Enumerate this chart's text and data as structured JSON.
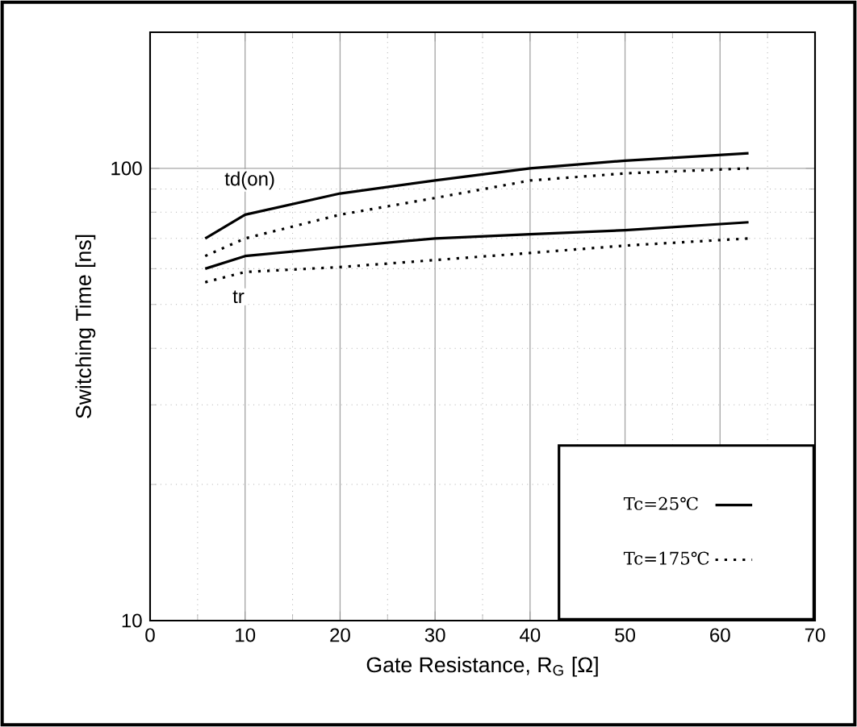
{
  "chart_data": {
    "type": "line",
    "xlabel": "Gate Resistance, R$_{G}$ [Ω]",
    "ylabel": "Switching Time [ns]",
    "log": "y",
    "grid": true,
    "legend": "bottom right",
    "marker": "none",
    "xlim": [
      0,
      70
    ],
    "xticks": [
      0,
      10,
      20,
      30,
      40,
      50,
      60,
      70
    ],
    "ylim": [
      10,
      200
    ],
    "yticks": [
      10,
      100
    ],
    "series": [
      {
        "name": "Tc=25℃",
        "color": "#000000",
        "line_style": "solid",
        "x": [
          5.8,
          10,
          20,
          30,
          40,
          50,
          63
        ],
        "values": [
          70,
          79,
          88,
          94,
          100,
          104,
          108
        ]
      },
      {
        "name": "Tc=175℃",
        "color": "#000000",
        "line_style": "dotted",
        "x": [
          5.8,
          10,
          20,
          30,
          40,
          50,
          63
        ],
        "values": [
          64,
          70,
          79,
          86,
          94,
          97.5,
          100
        ]
      },
      {
        "color": "#000000",
        "line_style": "solid",
        "x": [
          5.8,
          10,
          20,
          30,
          40,
          50,
          63
        ],
        "values": [
          60,
          64,
          67,
          70,
          71.5,
          73,
          76
        ]
      },
      {
        "color": "#000000",
        "line_style": "dotted",
        "x": [
          5.8,
          10,
          20,
          30,
          40,
          50,
          63
        ],
        "values": [
          56,
          59,
          60.5,
          62.7,
          65,
          67.5,
          70
        ]
      }
    ],
    "annotations": [
      {
        "text": "td(on)",
        "x": 10.5,
        "y": 94
      },
      {
        "text": "tr",
        "x": 9.3,
        "y": 52
      }
    ]
  }
}
